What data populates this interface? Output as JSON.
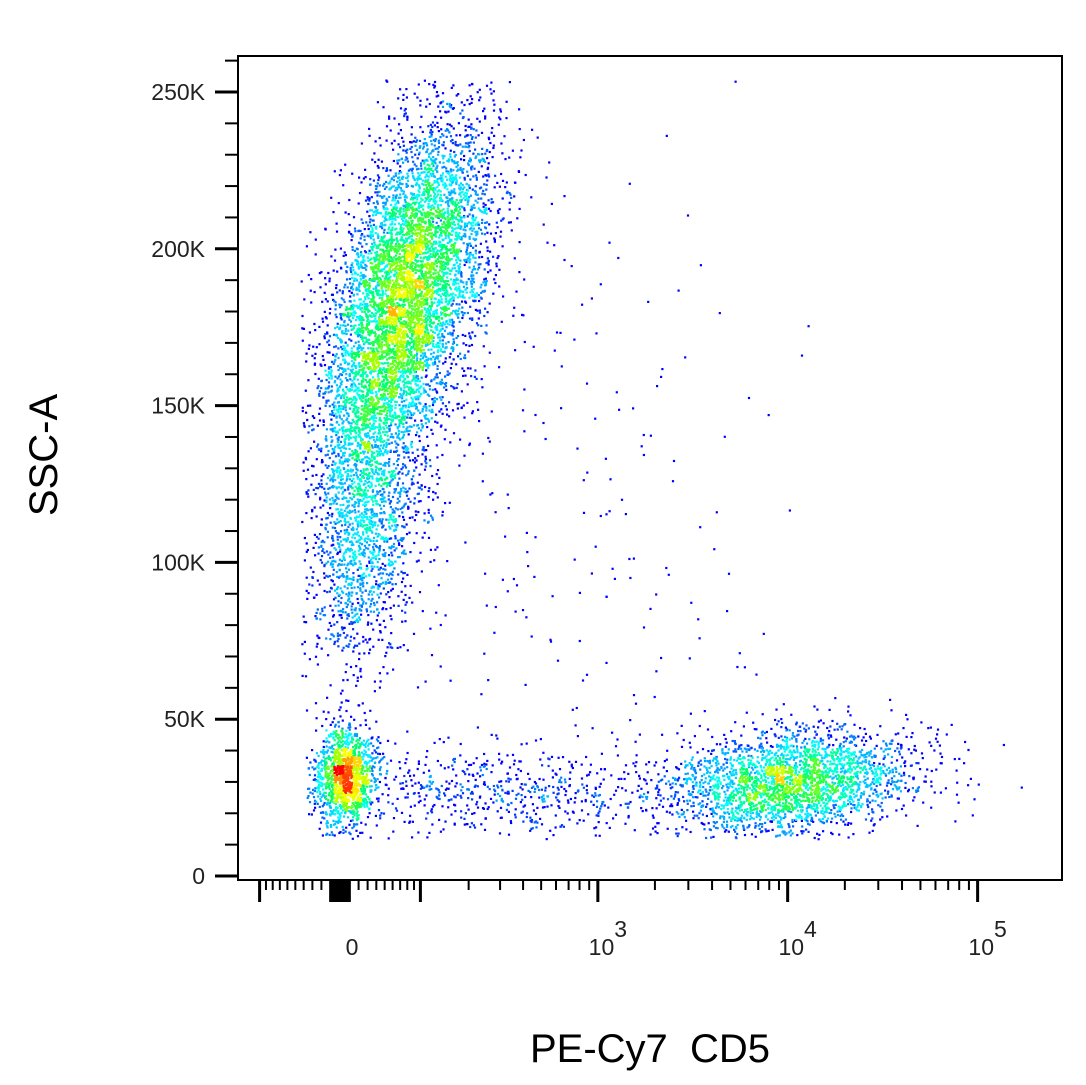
{
  "chart_data": {
    "type": "scatter",
    "style": "flow cytometry pseudocolor density dot plot",
    "xlabel": "PE-Cy7  CD5",
    "ylabel": "SSC-A",
    "x_scale": "biexponential",
    "y_scale": "linear",
    "xlim": [
      -150,
      150000
    ],
    "ylim": [
      0,
      262000
    ],
    "grid": false,
    "legend": "none",
    "x_ticks": [
      {
        "value": 0,
        "base": "0",
        "exp": ""
      },
      {
        "value": 1000,
        "base": "10",
        "exp": "3"
      },
      {
        "value": 10000,
        "base": "10",
        "exp": "4"
      },
      {
        "value": 100000,
        "base": "10",
        "exp": "5"
      }
    ],
    "y_ticks": [
      {
        "value": 0,
        "label": "0"
      },
      {
        "value": 50000,
        "label": "50K"
      },
      {
        "value": 100000,
        "label": "100K"
      },
      {
        "value": 150000,
        "label": "150K"
      },
      {
        "value": 200000,
        "label": "200K"
      },
      {
        "value": 250000,
        "label": "250K"
      }
    ],
    "populations": [
      {
        "name": "",
        "count": 6500,
        "x_center": 77,
        "x_range": [
          -11,
          270
        ],
        "y_center": 185000,
        "y_sd": 28000,
        "correlation": 0.5
      },
      {
        "name": "",
        "count": 1700,
        "x_center": 25,
        "x_range": [
          -15,
          130
        ],
        "y_center": 115000,
        "y_sd": 25000,
        "correlation": 0.2
      },
      {
        "name": "",
        "count": 1300,
        "x_center": 5,
        "x_range": [
          -28,
          40
        ],
        "y_center": 32000,
        "y_sd": 8000,
        "correlation": 0
      },
      {
        "name": "",
        "count": 2800,
        "x_center": 10000,
        "x_range": [
          2000,
          40000
        ],
        "y_center": 30000,
        "y_sd": 8500,
        "correlation": 0.2
      },
      {
        "name": "",
        "count": 600,
        "x_center": 300,
        "x_range": [
          20,
          5000
        ],
        "y_center": 27000,
        "y_sd": 7000,
        "correlation": 0
      },
      {
        "name": "",
        "count": 260,
        "x_center": 500,
        "x_range": [
          50,
          20000
        ],
        "y_center": 120000,
        "y_sd": 60000,
        "correlation": 0
      }
    ],
    "colormap": [
      "#0000ff",
      "#00a0ff",
      "#00ffff",
      "#00ff60",
      "#a0ff00",
      "#ffff00",
      "#ff8000",
      "#ff0000"
    ]
  }
}
